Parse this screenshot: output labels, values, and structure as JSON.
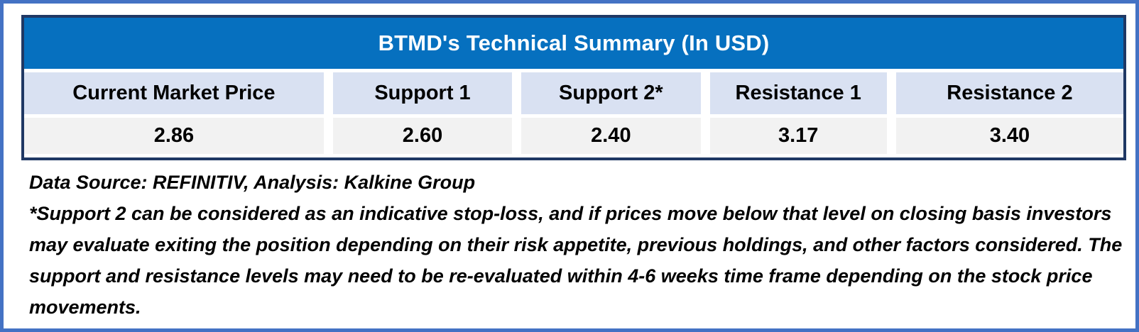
{
  "chart_data": {
    "type": "table",
    "title": "BTMD's Technical Summary (In USD)",
    "columns": [
      "Current Market Price",
      "Support 1",
      "Support 2*",
      "Resistance 1",
      "Resistance 2"
    ],
    "values": [
      "2.86",
      "2.60",
      "2.40",
      "3.17",
      "3.40"
    ],
    "numeric_values": [
      2.86,
      2.6,
      2.4,
      3.17,
      3.4
    ],
    "layout": {
      "title_position": "top-spanning-all-columns",
      "grid": "single header row with single value row, white gutters between columns"
    }
  },
  "footnotes": {
    "source": "Data Source: REFINITIV, Analysis: Kalkine Group",
    "disclaimer": "*Support 2 can be considered as an indicative stop-loss, and if prices move below that level on closing basis investors may evaluate exiting the position depending on their risk appetite, previous holdings, and other factors considered. The support and resistance levels may need to be re-evaluated within 4-6 weeks time frame depending on the stock price movements."
  },
  "colors": {
    "title_bar_bg": "#0670BF",
    "title_text": "#FFFFFF",
    "header_row_bg": "#D9E1F2",
    "value_row_bg": "#F2F2F2",
    "table_border": "#1F3864",
    "outer_frame_border": "#4472C4",
    "body_text": "#000000"
  }
}
